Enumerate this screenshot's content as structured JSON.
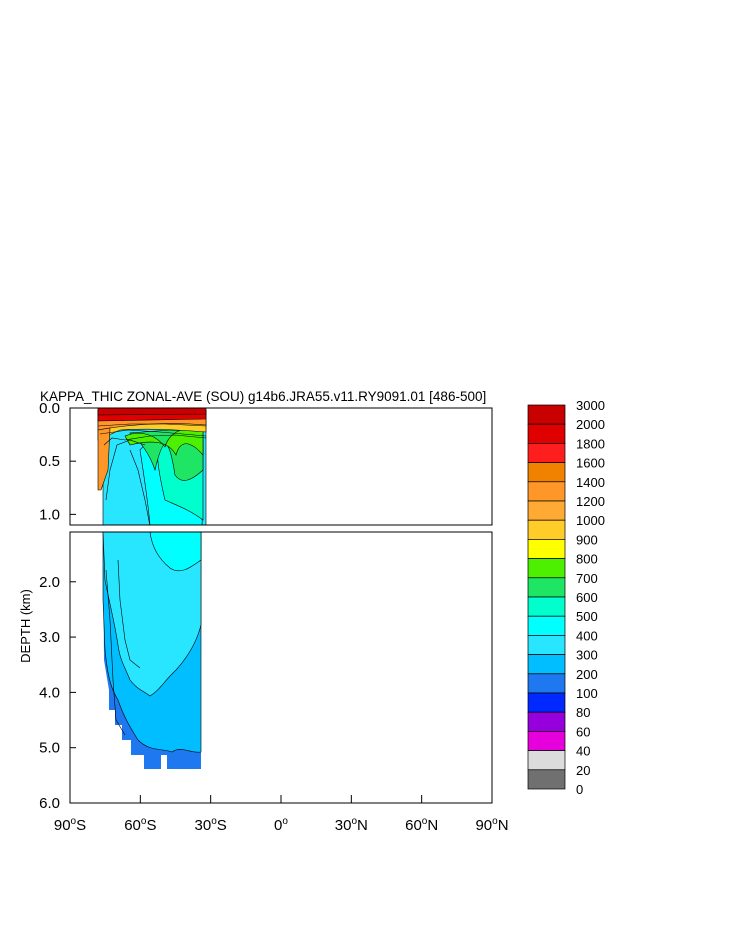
{
  "chart_data": {
    "type": "heatmap",
    "title": "KAPPA_THIC ZONAL-AVE (SOU) g14b6.JRA55.v11.RY9091.01 [486-500]",
    "xlabel": "",
    "ylabel": "DEPTH (km)",
    "xlim": [
      -90,
      90
    ],
    "x_ticks": [
      {
        "value": -90,
        "deg": "90",
        "hemi": "S"
      },
      {
        "value": -60,
        "deg": "60",
        "hemi": "S"
      },
      {
        "value": -30,
        "deg": "30",
        "hemi": "S"
      },
      {
        "value": 0,
        "deg": "0",
        "hemi": ""
      },
      {
        "value": 30,
        "deg": "30",
        "hemi": "N"
      },
      {
        "value": 60,
        "deg": "60",
        "hemi": "N"
      },
      {
        "value": 90,
        "deg": "90",
        "hemi": "N"
      }
    ],
    "upper_panel": {
      "ylim": [
        0.0,
        1.1
      ],
      "y_ticks": [
        "0.0",
        "0.5",
        "1.0"
      ],
      "y_tick_values": [
        0.0,
        0.5,
        1.0
      ]
    },
    "lower_panel": {
      "ylim": [
        1.1,
        6.0
      ],
      "y_ticks": [
        "2.0",
        "3.0",
        "4.0",
        "5.0",
        "6.0"
      ],
      "y_tick_values": [
        2.0,
        3.0,
        4.0,
        5.0,
        6.0
      ]
    },
    "colorbar": {
      "labels": [
        "3000",
        "2000",
        "1800",
        "1600",
        "1400",
        "1200",
        "1000",
        "900",
        "800",
        "700",
        "600",
        "500",
        "400",
        "300",
        "200",
        "100",
        "80",
        "60",
        "40",
        "20",
        "0"
      ],
      "colors": [
        "#c80000",
        "#e00000",
        "#ff1e1e",
        "#f08200",
        "#ff9628",
        "#ffaa32",
        "#ffcc28",
        "#ffff00",
        "#4cf000",
        "#1ee664",
        "#00ffcc",
        "#00ffff",
        "#28e6ff",
        "#00beff",
        "#1e78f0",
        "#0028ff",
        "#9600dc",
        "#e600dc",
        "#dcdcdc",
        "#707070"
      ]
    },
    "fields": [
      {
        "level": "200-300",
        "lat_range": [
          -76,
          -34
        ],
        "depth_range": [
          0.0,
          5.4
        ]
      },
      {
        "level": "300-400",
        "lat_range": [
          -75,
          -34
        ],
        "depth_range": [
          0.0,
          5.0
        ]
      },
      {
        "level": "400-500",
        "lat_range": [
          -68,
          -36
        ],
        "depth_range": [
          0.05,
          1.8
        ]
      },
      {
        "level": "500-600",
        "lat_range": [
          -62,
          -36
        ],
        "depth_range": [
          0.1,
          0.9
        ]
      },
      {
        "level": "600-700",
        "lat_range": [
          -63,
          -36
        ],
        "depth_range": [
          0.04,
          0.55
        ]
      },
      {
        "level": ">= 800",
        "lat_range": [
          -77,
          -34
        ],
        "depth_range": [
          0.0,
          0.2
        ]
      }
    ]
  }
}
